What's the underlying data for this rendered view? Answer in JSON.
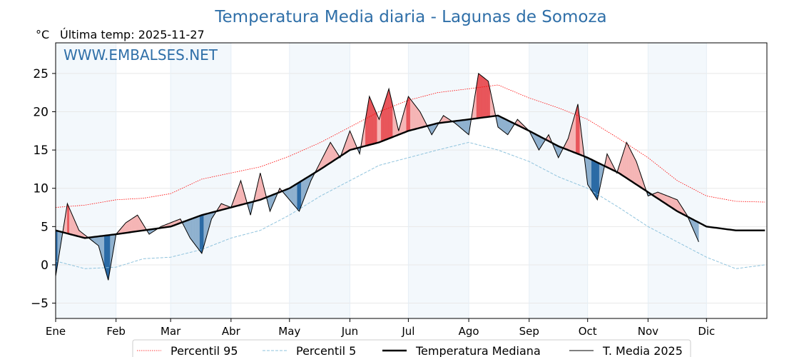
{
  "chart_data": {
    "type": "line",
    "title": "Temperatura Media diaria - Lagunas de Somoza",
    "unit_label": "°C",
    "subtitle": "Última temp: 2025-11-27",
    "watermark": "WWW.EMBALSES.NET",
    "ylim": [
      -7,
      29
    ],
    "y_ticks": [
      25,
      20,
      15,
      10,
      5,
      0,
      -5
    ],
    "y_tick_labels": [
      "25",
      "20",
      "15",
      "10",
      "5",
      "0",
      "−5"
    ],
    "months": [
      "Ene",
      "Feb",
      "Mar",
      "Abr",
      "May",
      "Jun",
      "Jul",
      "Ago",
      "Sep",
      "Oct",
      "Nov",
      "Dic"
    ],
    "month_start_days": [
      0,
      31,
      59,
      90,
      120,
      151,
      181,
      212,
      243,
      273,
      304,
      334
    ],
    "days_in_year": 365,
    "last_observed_day": 330,
    "grid": true,
    "legend_position": "bottom",
    "series": [
      {
        "name": "Percentil 95",
        "style": "red dotted",
        "color": "#ff0000",
        "x": [
          0,
          15,
          31,
          45,
          59,
          75,
          90,
          105,
          120,
          136,
          151,
          166,
          181,
          196,
          212,
          227,
          243,
          258,
          273,
          289,
          304,
          319,
          334,
          349,
          364
        ],
        "y": [
          7.5,
          7.8,
          8.5,
          8.7,
          9.3,
          11.2,
          12.0,
          12.8,
          14.2,
          16.0,
          18.0,
          20.0,
          21.5,
          22.5,
          23.0,
          23.5,
          21.8,
          20.5,
          19.0,
          16.5,
          14.0,
          11.0,
          9.0,
          8.3,
          8.2
        ]
      },
      {
        "name": "Percentil 5",
        "style": "light blue dashed",
        "color": "#8fc3dd",
        "x": [
          0,
          15,
          31,
          45,
          59,
          75,
          90,
          105,
          120,
          136,
          151,
          166,
          181,
          196,
          212,
          227,
          243,
          258,
          273,
          289,
          304,
          319,
          334,
          349,
          364
        ],
        "y": [
          0.5,
          -0.5,
          -0.3,
          0.8,
          1.0,
          2.0,
          3.5,
          4.5,
          6.5,
          9.0,
          11.0,
          13.0,
          14.0,
          15.0,
          16.0,
          15.0,
          13.5,
          11.5,
          10.0,
          7.5,
          5.0,
          3.0,
          1.0,
          -0.5,
          0.0
        ]
      },
      {
        "name": "Temperatura Mediana",
        "style": "black thick",
        "color": "#000000",
        "x": [
          0,
          15,
          31,
          45,
          59,
          75,
          90,
          105,
          120,
          136,
          151,
          166,
          181,
          196,
          212,
          227,
          243,
          258,
          273,
          289,
          304,
          319,
          334,
          349,
          364
        ],
        "y": [
          4.5,
          3.5,
          4.0,
          4.5,
          5.0,
          6.5,
          7.5,
          8.5,
          10.0,
          12.5,
          15.0,
          16.0,
          17.5,
          18.5,
          19.0,
          19.5,
          17.5,
          15.5,
          14.0,
          12.0,
          9.5,
          7.0,
          5.0,
          4.5,
          4.5
        ]
      },
      {
        "name": "T. Media 2025",
        "style": "black thin",
        "color": "#000000",
        "x": [
          0,
          6,
          12,
          17,
          22,
          27,
          31,
          36,
          42,
          48,
          54,
          59,
          64,
          69,
          75,
          80,
          85,
          90,
          95,
          100,
          105,
          110,
          115,
          120,
          125,
          131,
          136,
          141,
          146,
          151,
          156,
          161,
          166,
          171,
          176,
          181,
          187,
          193,
          199,
          205,
          212,
          217,
          222,
          227,
          232,
          237,
          243,
          248,
          253,
          258,
          263,
          268,
          273,
          278,
          283,
          288,
          293,
          298,
          304,
          309,
          314,
          319,
          324,
          330
        ],
        "y": [
          -1.5,
          8.0,
          4.5,
          3.5,
          2.5,
          -2.0,
          4.0,
          5.5,
          6.5,
          4.0,
          5.0,
          5.5,
          6.0,
          3.5,
          1.5,
          6.0,
          8.0,
          7.5,
          11.0,
          6.5,
          12.0,
          7.0,
          10.0,
          8.5,
          7.0,
          11.0,
          13.5,
          16.0,
          14.0,
          17.5,
          14.5,
          22.0,
          19.0,
          23.0,
          17.5,
          22.0,
          20.0,
          17.0,
          19.5,
          18.5,
          17.0,
          25.0,
          24.0,
          18.0,
          17.0,
          19.0,
          17.5,
          15.0,
          17.0,
          14.0,
          16.5,
          21.0,
          10.5,
          8.5,
          14.5,
          12.0,
          16.0,
          13.5,
          9.0,
          9.5,
          9.0,
          8.5,
          6.5,
          3.0
        ]
      }
    ]
  }
}
